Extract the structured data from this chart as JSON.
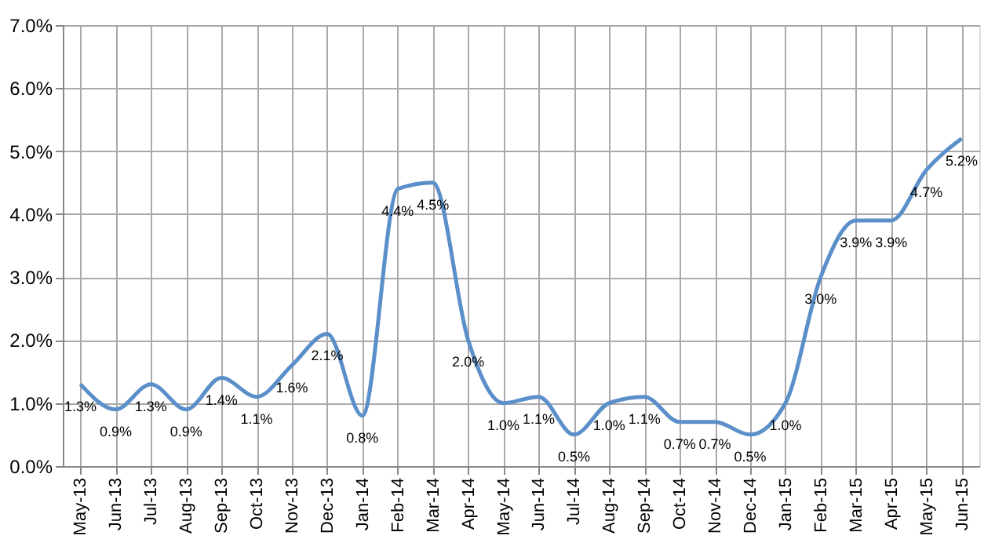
{
  "chart_data": {
    "type": "line",
    "categories": [
      "May-13",
      "Jun-13",
      "Jul-13",
      "Aug-13",
      "Sep-13",
      "Oct-13",
      "Nov-13",
      "Dec-13",
      "Jan-14",
      "Feb-14",
      "Mar-14",
      "Apr-14",
      "May-14",
      "Jun-14",
      "Jul-14",
      "Aug-14",
      "Sep-14",
      "Oct-14",
      "Nov-14",
      "Dec-14",
      "Jan-15",
      "Feb-15",
      "Mar-15",
      "Apr-15",
      "May-15",
      "Jun-15"
    ],
    "series": [
      {
        "color": "#5b8fc9",
        "values": [
          1.3,
          0.9,
          1.3,
          0.9,
          1.4,
          1.1,
          1.6,
          2.1,
          0.8,
          4.4,
          4.5,
          2.0,
          1.0,
          1.1,
          0.5,
          1.0,
          1.1,
          0.7,
          0.7,
          0.5,
          1.0,
          3.0,
          3.9,
          3.9,
          4.7,
          5.2
        ],
        "value_labels": [
          "1.3%",
          "0.9%",
          "1.3%",
          "0.9%",
          "1.4%",
          "1.1%",
          "1.6%",
          "2.1%",
          "0.8%",
          "4.4%",
          "4.5%",
          "2.0%",
          "1.0%",
          "1.1%",
          "0.5%",
          "1.0%",
          "1.1%",
          "0.7%",
          "0.7%",
          "0.5%",
          "1.0%",
          "3.0%",
          "3.9%",
          "3.9%",
          "4.7%",
          "5.2%"
        ]
      }
    ],
    "ylim": [
      0,
      7
    ],
    "yticks": [
      {
        "value": 0,
        "label": "0.0%"
      },
      {
        "value": 1,
        "label": "1.0%"
      },
      {
        "value": 2,
        "label": "2.0%"
      },
      {
        "value": 3,
        "label": "3.0%"
      },
      {
        "value": 4,
        "label": "4.0%"
      },
      {
        "value": 5,
        "label": "5.0%"
      },
      {
        "value": 6,
        "label": "6.0%"
      },
      {
        "value": 7,
        "label": "7.0%"
      }
    ],
    "grid": true,
    "marker": "none",
    "line_style": "solid"
  }
}
